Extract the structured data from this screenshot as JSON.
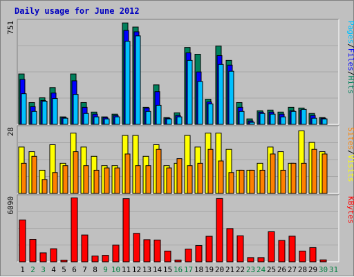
{
  "title": "Daily usage for June 2012",
  "colors": {
    "background": "#c0c0c0",
    "title": "#0000c0",
    "hits": "#00805c",
    "files": "#0000ff",
    "pages": "#00c0ff",
    "visits": "#ffff00",
    "sites": "#ff8000",
    "kbytes": "#ff0000",
    "weekday_label": "#000000",
    "weekend_label": "#008040"
  },
  "legend": {
    "top": [
      "Pages",
      "/",
      "Files",
      "/",
      "Hits"
    ],
    "middle": [
      "Sites",
      "/",
      "Visits"
    ],
    "bottom": [
      "KBytes"
    ]
  },
  "chart_data": [
    {
      "type": "bar",
      "title": "Daily usage for June 2012",
      "panel": "hits-files-pages",
      "ymax_label": "751",
      "ylim": [
        0,
        751
      ],
      "categories": [
        "1",
        "2",
        "3",
        "4",
        "5",
        "6",
        "7",
        "8",
        "9",
        "10",
        "11",
        "12",
        "13",
        "14",
        "15",
        "16",
        "17",
        "18",
        "19",
        "20",
        "21",
        "22",
        "23",
        "24",
        "25",
        "26",
        "27",
        "28",
        "29",
        "30",
        "31"
      ],
      "weekend_days": [
        "2",
        "3",
        "9",
        "10",
        "16",
        "17",
        "23",
        "24",
        "30",
        "31"
      ],
      "series": [
        {
          "name": "Hits",
          "values": [
            370,
            160,
            195,
            270,
            55,
            370,
            160,
            90,
            55,
            75,
            745,
            715,
            125,
            290,
            50,
            85,
            565,
            515,
            185,
            575,
            470,
            160,
            40,
            100,
            105,
            90,
            125,
            120,
            80,
            50,
            0
          ]
        },
        {
          "name": "Files",
          "values": [
            330,
            130,
            175,
            230,
            50,
            320,
            125,
            75,
            50,
            65,
            690,
            680,
            120,
            240,
            45,
            65,
            525,
            385,
            165,
            505,
            435,
            125,
            25,
            90,
            90,
            75,
            100,
            105,
            65,
            45,
            0
          ]
        },
        {
          "name": "Pages",
          "values": [
            225,
            95,
            170,
            190,
            45,
            220,
            80,
            55,
            40,
            55,
            610,
            650,
            95,
            140,
            40,
            55,
            470,
            315,
            150,
            440,
            390,
            95,
            15,
            80,
            75,
            55,
            95,
            110,
            45,
            40,
            0
          ]
        }
      ]
    },
    {
      "type": "bar",
      "panel": "visits-sites",
      "ymax_label": "28",
      "ylim": [
        0,
        28
      ],
      "series": [
        {
          "name": "Visits",
          "values": [
            20,
            18,
            10,
            21,
            13,
            26,
            20,
            16,
            12,
            12,
            25,
            25,
            16,
            21,
            12,
            13,
            25,
            20,
            26,
            26,
            19,
            10,
            10,
            13,
            20,
            18,
            13,
            27,
            22,
            18,
            0
          ]
        },
        {
          "name": "Sites",
          "values": [
            13,
            16,
            6,
            9,
            12,
            18,
            12,
            10,
            11,
            11,
            17,
            12,
            12,
            19,
            11,
            15,
            12,
            13,
            19,
            14,
            9,
            10,
            10,
            10,
            17,
            10,
            13,
            13,
            19,
            17,
            0
          ]
        }
      ]
    },
    {
      "type": "bar",
      "panel": "kbytes",
      "ymax_label": "6090",
      "ylim": [
        0,
        6090
      ],
      "series": [
        {
          "name": "KBytes",
          "values": [
            3970,
            2125,
            852,
            1238,
            160,
            6060,
            2545,
            550,
            614,
            1580,
            5985,
            2700,
            2100,
            2067,
            1020,
            172,
            1210,
            1540,
            2420,
            6000,
            3150,
            2467,
            400,
            400,
            2853,
            2026,
            2430,
            1020,
            1350,
            185,
            0
          ]
        }
      ]
    }
  ]
}
